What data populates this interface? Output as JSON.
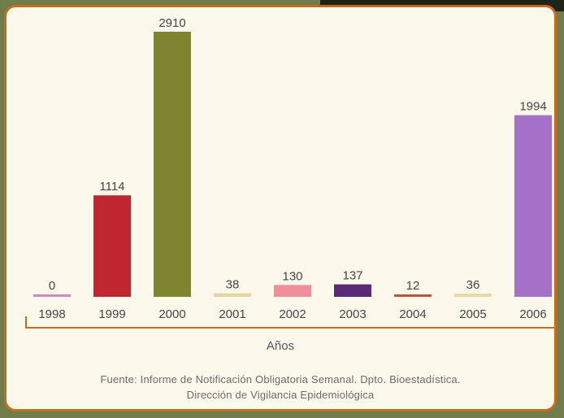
{
  "chart_data": {
    "type": "bar",
    "categories": [
      "1998",
      "1999",
      "2000",
      "2001",
      "2002",
      "2003",
      "2004",
      "2005",
      "2006"
    ],
    "values": [
      0,
      1114,
      2910,
      38,
      130,
      137,
      12,
      36,
      1994
    ],
    "value_labels": [
      "0",
      "1114",
      "2910",
      "38",
      "130",
      "137",
      "12",
      "36",
      "1994"
    ],
    "colors": [
      "#c98ac0",
      "#c0262f",
      "#7f8430",
      "#e3d6a0",
      "#f08e9c",
      "#5a2a74",
      "#b8553e",
      "#e6dba8",
      "#a470c8"
    ],
    "title": "",
    "xlabel": "Años",
    "ylabel": "",
    "ylim": [
      0,
      2910
    ],
    "grid": false,
    "legend": "none"
  },
  "source": {
    "line1": "Fuente: Informe de Notificación Obligatoria Semanal. Dpto. Bioestadística.",
    "line2": "Dirección de Vigilancia Epidemiológica"
  }
}
